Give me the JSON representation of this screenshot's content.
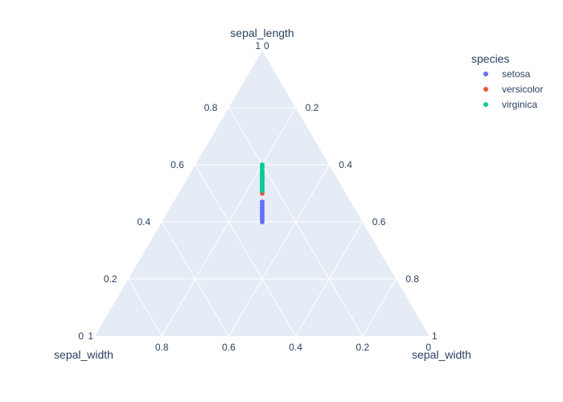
{
  "chart_data": {
    "type": "scatter",
    "subtype": "ternary",
    "axes": {
      "a": {
        "title": "sepal_length",
        "ticks": [
          0,
          0.2,
          0.4,
          0.6,
          0.8,
          1
        ],
        "tick_labels": [
          "0",
          "0.2",
          "0.4",
          "0.6",
          "0.8",
          "1"
        ]
      },
      "b": {
        "title": "sepal_width",
        "ticks": [
          0,
          0.2,
          0.4,
          0.6,
          0.8,
          1
        ],
        "tick_labels": [
          "0",
          "0.2",
          "0.4",
          "0.6",
          "0.8",
          "1"
        ]
      },
      "c": {
        "title": "sepal_width",
        "ticks": [
          0,
          0.2,
          0.4,
          0.6,
          0.8,
          1
        ],
        "tick_labels": [
          "0",
          "0.2",
          "0.4",
          "0.6",
          "0.8",
          "1"
        ]
      }
    },
    "grid": true,
    "legend": {
      "title": "species",
      "placement": "top-right"
    },
    "colors": {
      "background": "#e5ecf6",
      "grid": "#ffffff",
      "text": "#2a3f5f"
    },
    "series": [
      {
        "name": "setosa",
        "color": "#636efa",
        "a": [
          0.4,
          0.41,
          0.42,
          0.43,
          0.44,
          0.45,
          0.46,
          0.47
        ],
        "b": [
          0.3,
          0.295,
          0.29,
          0.285,
          0.28,
          0.275,
          0.27,
          0.265
        ],
        "c": [
          0.3,
          0.295,
          0.29,
          0.285,
          0.28,
          0.275,
          0.27,
          0.265
        ]
      },
      {
        "name": "versicolor",
        "color": "#ef553b",
        "a": [
          0.5,
          0.51,
          0.52,
          0.53,
          0.54,
          0.55,
          0.56,
          0.57
        ],
        "b": [
          0.25,
          0.245,
          0.24,
          0.235,
          0.23,
          0.225,
          0.22,
          0.215
        ],
        "c": [
          0.25,
          0.245,
          0.24,
          0.235,
          0.23,
          0.225,
          0.22,
          0.215
        ]
      },
      {
        "name": "virginica",
        "color": "#00cc96",
        "a": [
          0.51,
          0.52,
          0.53,
          0.54,
          0.55,
          0.56,
          0.57,
          0.58,
          0.59,
          0.6
        ],
        "b": [
          0.245,
          0.24,
          0.235,
          0.23,
          0.225,
          0.22,
          0.215,
          0.21,
          0.205,
          0.2
        ],
        "c": [
          0.245,
          0.24,
          0.235,
          0.23,
          0.225,
          0.22,
          0.215,
          0.21,
          0.205,
          0.2
        ]
      }
    ]
  }
}
